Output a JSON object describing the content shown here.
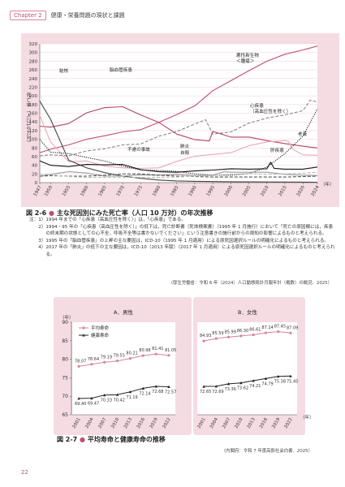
{
  "header": {
    "chapter_label": "Chapter 2",
    "title": "健康・栄養問題の現状と課題"
  },
  "fig1": {
    "caption_number": "図 2-6",
    "caption_text": "主な死因別にみた死亡率（人口 10 万対）の年次推移",
    "source": "（厚生労働省：令和 6 年（2024）人口動態統計月報年計（概数）の概況．2025）",
    "notes": [
      {
        "label": "注：1）",
        "text": "1994 年までの「心疾患（高血圧性を除く）」は，「心疾患」である。"
      },
      {
        "label": "　　2）",
        "text": "1994・95 年の「心疾患（高血圧性を除く）」の低下は，死亡診断書（死体検案書）（1995 年 1 月施行）において「死亡の原因欄には，疾患の終末期の状態としての心不全，呼吸不全等は書かないでください」という注意書きの施行前からの周知の影響によるものと考えられる。"
      },
      {
        "label": "　　3）",
        "text": "1995 年の「脳血管疾患」の上昇の主な要因は，ICD-10（1995 年 1 月適用）による原死因選択ルールの明確化によるものと考えられる。"
      },
      {
        "label": "　　4）",
        "text": "2017 年の「肺炎」の低下の主な要因は，ICD-10（2013 年版）（2017 年 1 月適用）による原死因選択ルールの明確化によるものと考えられる。"
      }
    ]
  },
  "fig2": {
    "caption_number": "図 2-7",
    "caption_text": "平均寿命と健康寿命の推移",
    "source": "（内閣府：令和 7 年度高齢社会白書．2025）"
  },
  "page_number": "22",
  "colors": {
    "accent": "#c24d6e",
    "panel_bg": "#f5dbe2",
    "life": "#d9839b",
    "health": "#222222"
  },
  "chart_data": [
    {
      "type": "line",
      "title": "",
      "ylabel": "死亡率（人口10万対）",
      "xlabel": "（年）",
      "ylim": [
        0,
        320
      ],
      "yticks": [
        0,
        20,
        40,
        60,
        80,
        100,
        120,
        140,
        160,
        180,
        200,
        220,
        240,
        260,
        280,
        300,
        320
      ],
      "xlim": [
        1947,
        2024
      ],
      "xticks": [
        "1947",
        "1950",
        "1955",
        "1960",
        "1965",
        "1970",
        "1975",
        "1980",
        "1985",
        "1990",
        "1995",
        "2000",
        "2005",
        "2010",
        "2015",
        "2020",
        "2024"
      ],
      "grid": true,
      "series": [
        {
          "name": "悪性新生物\n＜腫瘍＞",
          "color": "#c24d6e",
          "style": "solid",
          "x": [
            1947,
            1950,
            1955,
            1960,
            1965,
            1970,
            1975,
            1980,
            1985,
            1990,
            1995,
            2000,
            2005,
            2010,
            2015,
            2020,
            2024
          ],
          "y": [
            69,
            77,
            87,
            100,
            108,
            117,
            122,
            139,
            157,
            177,
            212,
            235,
            258,
            280,
            296,
            306,
            315
          ]
        },
        {
          "name": "心疾患\n（高血圧性を除く）",
          "color": "#888888",
          "style": "dashed",
          "x": [
            1947,
            1950,
            1955,
            1960,
            1965,
            1970,
            1975,
            1980,
            1985,
            1990,
            1993,
            1994,
            1995,
            2000,
            2005,
            2010,
            2015,
            2020,
            2022,
            2024
          ],
          "y": [
            62,
            64,
            62,
            73,
            78,
            87,
            89,
            107,
            118,
            135,
            145,
            128,
            112,
            117,
            137,
            149,
            156,
            166,
            190,
            186
          ]
        },
        {
          "name": "脳血管疾患",
          "color": "#b5435f",
          "style": "solid",
          "x": [
            1947,
            1950,
            1955,
            1960,
            1965,
            1970,
            1975,
            1980,
            1985,
            1990,
            1994,
            1995,
            2000,
            2005,
            2010,
            2015,
            2020,
            2024
          ],
          "y": [
            130,
            128,
            136,
            161,
            173,
            175,
            156,
            139,
            112,
            99,
            96,
            118,
            105,
            105,
            97,
            90,
            84,
            80
          ]
        },
        {
          "name": "肺炎",
          "color": "#e8a9b9",
          "style": "solid",
          "x": [
            1947,
            1950,
            1955,
            1960,
            1965,
            1970,
            1975,
            1980,
            1985,
            1990,
            1995,
            2000,
            2005,
            2010,
            2015,
            2016,
            2017,
            2020,
            2024
          ],
          "y": [
            155,
            94,
            48,
            50,
            38,
            34,
            33,
            34,
            49,
            61,
            65,
            69,
            85,
            94,
            97,
            95,
            78,
            64,
            63
          ]
        },
        {
          "name": "老衰",
          "color": "#222222",
          "style": "dotted",
          "x": [
            1947,
            1950,
            1955,
            1960,
            1965,
            1970,
            1975,
            1980,
            1985,
            1990,
            1995,
            2000,
            2005,
            2010,
            2015,
            2020,
            2024
          ],
          "y": [
            100,
            70,
            67,
            58,
            50,
            38,
            29,
            28,
            26,
            20,
            17,
            17,
            21,
            36,
            67,
            107,
            170
          ]
        },
        {
          "name": "結核",
          "color": "#444444",
          "style": "solid",
          "x": [
            1947,
            1950,
            1955,
            1960,
            1965,
            1970,
            1975,
            1980,
            1985,
            1990,
            2000,
            2024
          ],
          "y": [
            188,
            146,
            52,
            34,
            23,
            15,
            10,
            6,
            4,
            3,
            2,
            1
          ]
        },
        {
          "name": "不慮の事故",
          "color": "#111111",
          "style": "solid",
          "x": [
            1947,
            1950,
            1955,
            1960,
            1965,
            1970,
            1975,
            1980,
            1985,
            1990,
            1995,
            2000,
            2005,
            2010,
            2011,
            2012,
            2015,
            2020,
            2024
          ],
          "y": [
            50,
            40,
            37,
            42,
            41,
            42,
            30,
            25,
            24,
            27,
            29,
            32,
            31,
            32,
            47,
            33,
            31,
            31,
            36
          ]
        },
        {
          "name": "自殺",
          "color": "#9a9a9a",
          "style": "solid",
          "x": [
            1947,
            1950,
            1955,
            1960,
            1965,
            1970,
            1975,
            1980,
            1985,
            1990,
            1995,
            1998,
            2000,
            2005,
            2010,
            2015,
            2020,
            2024
          ],
          "y": [
            15,
            19,
            25,
            22,
            15,
            15,
            18,
            17,
            19,
            16,
            17,
            25,
            24,
            24,
            24,
            19,
            17,
            16
          ]
        },
        {
          "name": "肝疾患",
          "color": "#555555",
          "style": "dashed",
          "x": [
            1947,
            1950,
            1955,
            1960,
            1965,
            1970,
            1975,
            1980,
            1985,
            1990,
            1995,
            2000,
            2005,
            2010,
            2015,
            2020,
            2024
          ],
          "y": [
            15,
            16,
            15,
            15,
            17,
            20,
            20,
            17,
            15,
            14,
            13,
            13,
            13,
            13,
            13,
            14,
            15
          ]
        },
        {
          "name": "腎不全",
          "color": "#bbbbbb",
          "style": "dashed",
          "x": [
            1947,
            1950,
            1955,
            1960,
            1965,
            1970,
            1975,
            1980,
            1985,
            1990,
            1995,
            2000,
            2005,
            2010,
            2015,
            2020,
            2024
          ],
          "y": [
            20,
            18,
            14,
            12,
            12,
            12,
            12,
            12,
            13,
            15,
            16,
            19,
            21,
            19,
            20,
            22,
            24
          ]
        }
      ],
      "labels": [
        {
          "text": "結核",
          "series": "結核"
        },
        {
          "text": "脳血管疾患",
          "series": "脳血管疾患"
        },
        {
          "text": "悪性新生物\n＜腫瘍＞",
          "series": "悪性新生物"
        },
        {
          "text": "心疾患\n（高血圧性を除く）",
          "series": "心疾患"
        },
        {
          "text": "老衰",
          "series": "老衰"
        },
        {
          "text": "肺炎",
          "series": "肺炎"
        },
        {
          "text": "不慮の事故",
          "series": "不慮の事故"
        },
        {
          "text": "自殺",
          "series": "自殺"
        },
        {
          "text": "肝疾患",
          "series": "肝疾患"
        }
      ]
    },
    {
      "type": "line",
      "title": "A．男性",
      "ylabel": "（年）",
      "xlabel": "（年）",
      "ylim": [
        65,
        90
      ],
      "yticks": [
        65,
        70,
        75,
        80,
        85,
        90
      ],
      "categories": [
        "2001",
        "2004",
        "2007",
        "2010",
        "2013",
        "2016",
        "2019",
        "2022"
      ],
      "legend": [
        "平均寿命",
        "健康寿命"
      ],
      "legend_position": "top-left",
      "series": [
        {
          "name": "平均寿命",
          "values": [
            78.07,
            78.64,
            79.19,
            79.55,
            80.21,
            80.98,
            81.41,
            81.05
          ],
          "labels": [
            "78.07",
            "78.64",
            "79.19",
            "79.55",
            "80.21",
            "80.98",
            "81.41",
            "81.05"
          ]
        },
        {
          "name": "健康寿命",
          "values": [
            69.4,
            69.47,
            70.33,
            70.42,
            71.19,
            72.14,
            72.68,
            72.57
          ],
          "labels": [
            "69.40",
            "69.47",
            "70.33",
            "70.42",
            "71.19",
            "72.14",
            "72.68",
            "72.57"
          ]
        }
      ]
    },
    {
      "type": "line",
      "title": "B．女性",
      "xlabel": "（年）",
      "ylim": [
        65,
        90
      ],
      "categories": [
        "2001",
        "2004",
        "2007",
        "2010",
        "2013",
        "2016",
        "2019",
        "2022"
      ],
      "series": [
        {
          "name": "平均寿命",
          "values": [
            84.93,
            85.59,
            85.99,
            86.3,
            86.61,
            87.14,
            87.45,
            87.09
          ],
          "labels": [
            "84.93",
            "85.59",
            "85.99",
            "86.30",
            "86.61",
            "87.14",
            "87.45",
            "87.09"
          ]
        },
        {
          "name": "健康寿命",
          "values": [
            72.65,
            72.69,
            73.36,
            73.62,
            74.21,
            74.79,
            75.38,
            75.45
          ],
          "labels": [
            "72.65",
            "72.69",
            "73.36",
            "73.62",
            "74.21",
            "74.79",
            "75.38",
            "75.45"
          ]
        }
      ]
    }
  ]
}
